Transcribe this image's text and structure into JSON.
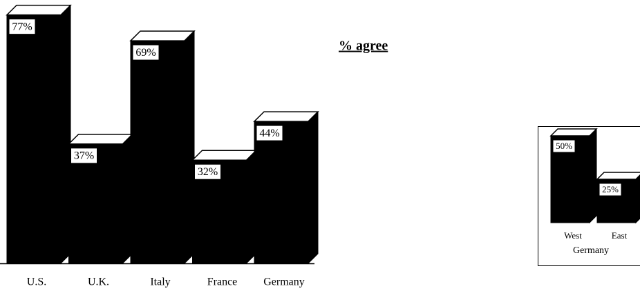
{
  "chart_data": [
    {
      "type": "bar",
      "subtitle": "% agree",
      "categories": [
        "U.S.",
        "U.K.",
        "Italy",
        "France",
        "Germany"
      ],
      "values": [
        77,
        37,
        69,
        32,
        44
      ],
      "value_labels": [
        "77%",
        "37%",
        "69%",
        "32%",
        "44%"
      ],
      "color": "#000000"
    },
    {
      "type": "bar",
      "group_label": "Germany",
      "categories": [
        "West",
        "East"
      ],
      "values": [
        50,
        25
      ],
      "value_labels": [
        "50%",
        "25%"
      ],
      "color": "#000000"
    }
  ]
}
